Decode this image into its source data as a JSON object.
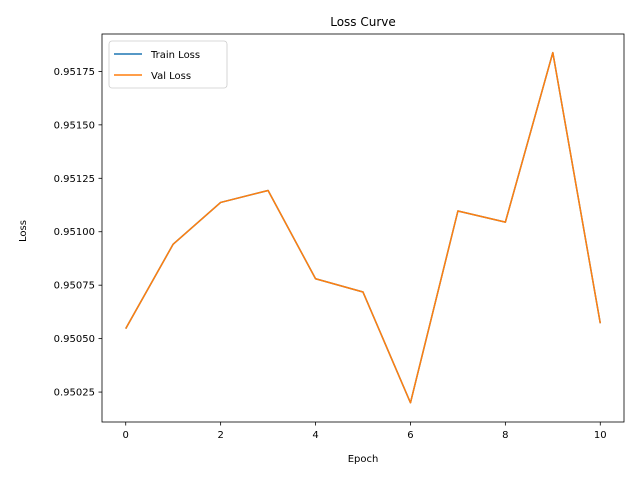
{
  "chart_data": {
    "type": "line",
    "title": "Loss Curve",
    "xlabel": "Epoch",
    "ylabel": "Loss",
    "xlim": [
      -0.5,
      10.5
    ],
    "ylim": [
      0.95011,
      0.951925
    ],
    "x_ticks": [
      0,
      2,
      4,
      6,
      8,
      10
    ],
    "y_ticks": [
      0.95025,
      0.9505,
      0.95075,
      0.951,
      0.95125,
      0.9515,
      0.95175
    ],
    "y_tick_labels": [
      "0.95025",
      "0.95050",
      "0.95075",
      "0.95100",
      "0.95125",
      "0.95150",
      "0.95175"
    ],
    "grid": false,
    "legend_position": "upper-left",
    "x": [
      0,
      1,
      2,
      3,
      4,
      5,
      6,
      7,
      8,
      9,
      10
    ],
    "series": [
      {
        "name": "Train Loss",
        "color": "#1f77b4",
        "values": [
          0.950547,
          0.950942,
          0.951137,
          0.951193,
          0.95078,
          0.950718,
          0.9502,
          0.951097,
          0.951045,
          0.951838,
          0.950572
        ]
      },
      {
        "name": "Val Loss",
        "color": "#ff7f0e",
        "values": [
          0.950547,
          0.950942,
          0.951137,
          0.951193,
          0.95078,
          0.950718,
          0.9502,
          0.951097,
          0.951045,
          0.951838,
          0.950572
        ]
      }
    ]
  }
}
